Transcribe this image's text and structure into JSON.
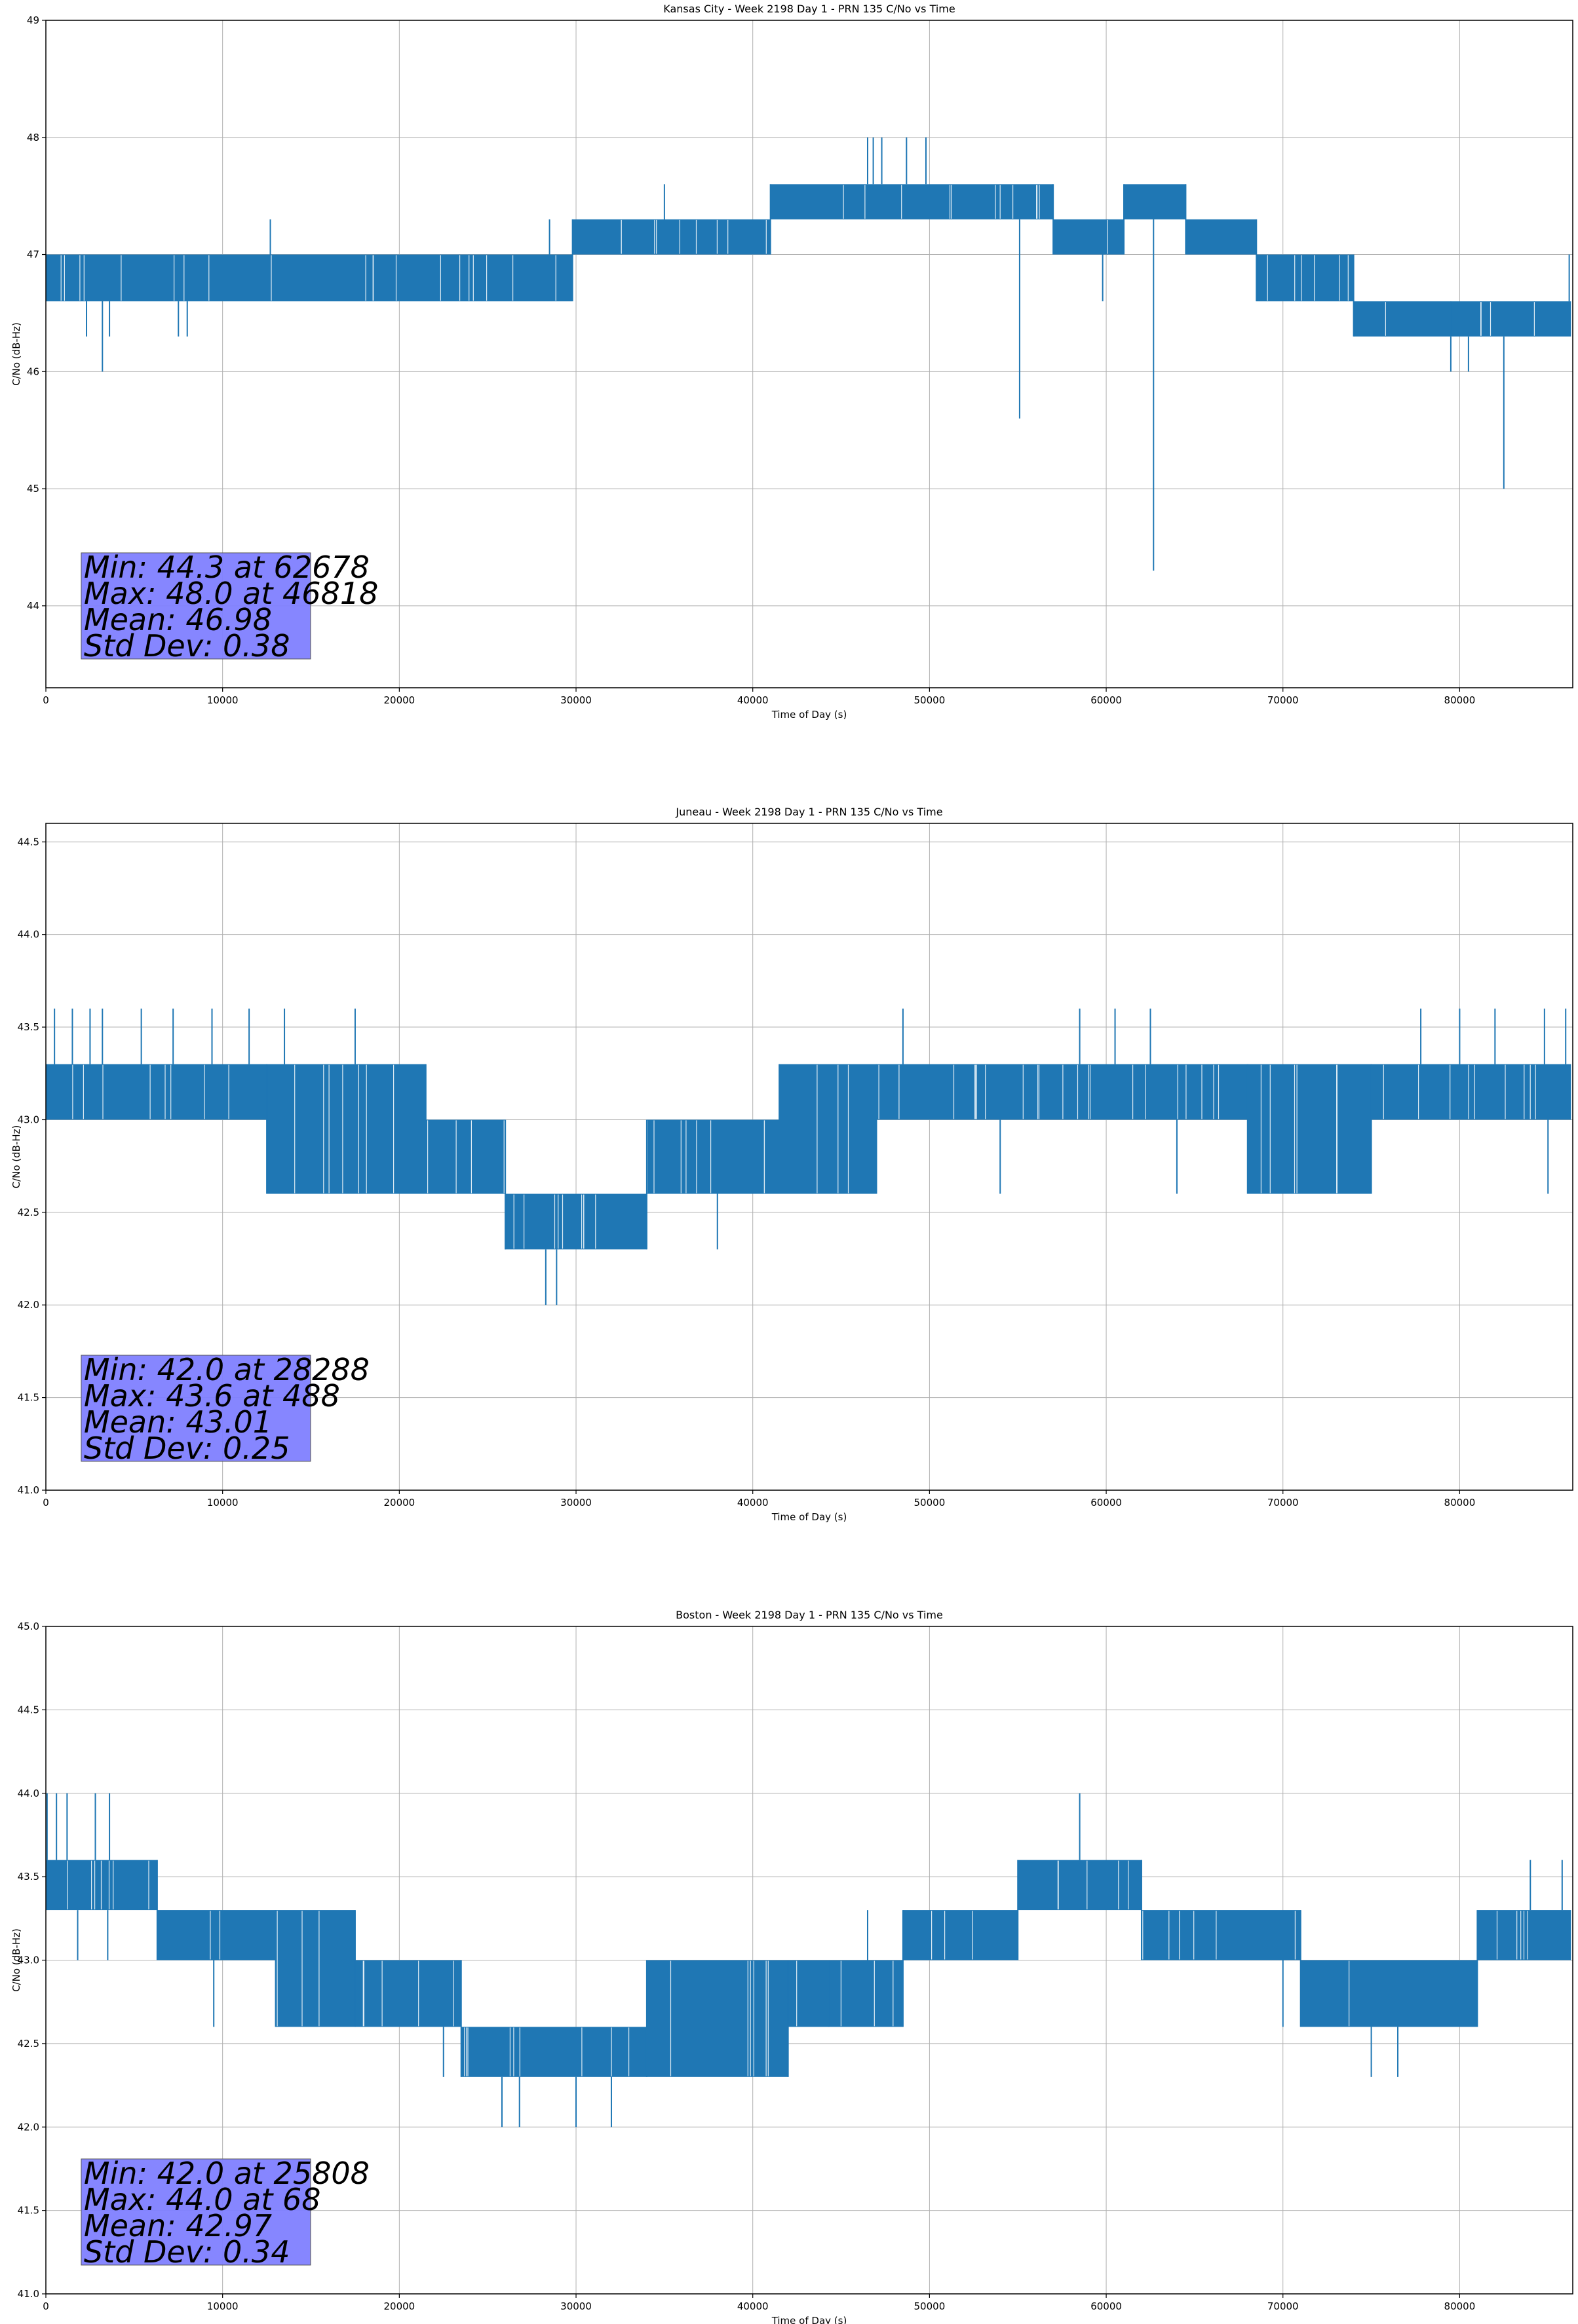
{
  "colors": {
    "series": "#1f77b4",
    "grid": "#b0b0b0",
    "stats_box": "#8080ff",
    "axes": "#000000"
  },
  "chart_data": [
    {
      "type": "line",
      "title": "Kansas City - Week 2198 Day 1 - PRN 135 C/No vs Time",
      "xlabel": "Time of Day (s)",
      "ylabel": "C/No (dB-Hz)",
      "xlim": [
        0,
        86400
      ],
      "ylim": [
        43.3,
        49.0
      ],
      "xticks": [
        0,
        10000,
        20000,
        30000,
        40000,
        50000,
        60000,
        70000,
        80000
      ],
      "yticks": [
        44,
        45,
        46,
        47,
        48,
        49
      ],
      "ytick_decimals": 0,
      "grid": true,
      "stats": [
        "Min: 44.3 at 62678",
        "Max: 48.0 at 46818",
        "Mean: 46.98",
        "Std Dev: 0.38"
      ],
      "series": [
        {
          "segments": [
            {
              "x0": 0,
              "x1": 29800,
              "lo": 46.6,
              "hi": 47.0
            },
            {
              "x0": 29800,
              "x1": 41000,
              "lo": 47.0,
              "hi": 47.3
            },
            {
              "x0": 41000,
              "x1": 57000,
              "lo": 47.3,
              "hi": 47.6
            },
            {
              "x0": 57000,
              "x1": 61000,
              "lo": 47.0,
              "hi": 47.3
            },
            {
              "x0": 61000,
              "x1": 64500,
              "lo": 47.3,
              "hi": 47.6
            },
            {
              "x0": 64500,
              "x1": 68500,
              "lo": 47.0,
              "hi": 47.3
            },
            {
              "x0": 68500,
              "x1": 74000,
              "lo": 46.6,
              "hi": 47.0
            },
            {
              "x0": 74000,
              "x1": 86300,
              "lo": 46.3,
              "hi": 46.6
            }
          ],
          "spikes": [
            {
              "x": 2300,
              "y": 46.3
            },
            {
              "x": 3200,
              "y": 46.0
            },
            {
              "x": 3600,
              "y": 46.3
            },
            {
              "x": 7500,
              "y": 46.3
            },
            {
              "x": 8000,
              "y": 46.3
            },
            {
              "x": 12700,
              "y": 47.3
            },
            {
              "x": 28500,
              "y": 47.3
            },
            {
              "x": 35000,
              "y": 47.6
            },
            {
              "x": 46500,
              "y": 48.0
            },
            {
              "x": 46818,
              "y": 48.0
            },
            {
              "x": 47300,
              "y": 48.0
            },
            {
              "x": 48700,
              "y": 48.0
            },
            {
              "x": 49800,
              "y": 48.0
            },
            {
              "x": 55100,
              "y": 45.6
            },
            {
              "x": 59800,
              "y": 46.6
            },
            {
              "x": 62678,
              "y": 44.3
            },
            {
              "x": 75400,
              "y": 46.3
            },
            {
              "x": 79500,
              "y": 46.6
            },
            {
              "x": 79500,
              "y": 46.0
            },
            {
              "x": 80500,
              "y": 46.0
            },
            {
              "x": 82500,
              "y": 45.0
            },
            {
              "x": 86200,
              "y": 47.0
            }
          ]
        }
      ]
    },
    {
      "type": "line",
      "title": "Juneau - Week 2198 Day 1 - PRN 135 C/No vs Time",
      "xlabel": "Time of Day (s)",
      "ylabel": "C/No (dB-Hz)",
      "xlim": [
        0,
        86400
      ],
      "ylim": [
        41.0,
        44.6
      ],
      "xticks": [
        0,
        10000,
        20000,
        30000,
        40000,
        50000,
        60000,
        70000,
        80000
      ],
      "yticks": [
        41.0,
        41.5,
        42.0,
        42.5,
        43.0,
        43.5,
        44.0,
        44.5
      ],
      "ytick_decimals": 1,
      "grid": true,
      "stats": [
        "Min: 42.0 at 28288",
        "Max: 43.6 at 488",
        "Mean: 43.01",
        "Std Dev: 0.25"
      ],
      "series": [
        {
          "segments": [
            {
              "x0": 0,
              "x1": 12500,
              "lo": 43.0,
              "hi": 43.3
            },
            {
              "x0": 12500,
              "x1": 21500,
              "lo": 42.6,
              "hi": 43.3
            },
            {
              "x0": 21500,
              "x1": 26000,
              "lo": 42.6,
              "hi": 43.0
            },
            {
              "x0": 26000,
              "x1": 34000,
              "lo": 42.3,
              "hi": 42.6
            },
            {
              "x0": 34000,
              "x1": 41500,
              "lo": 42.6,
              "hi": 43.0
            },
            {
              "x0": 41500,
              "x1": 47000,
              "lo": 42.6,
              "hi": 43.3
            },
            {
              "x0": 47000,
              "x1": 68000,
              "lo": 43.0,
              "hi": 43.3
            },
            {
              "x0": 68000,
              "x1": 75000,
              "lo": 42.6,
              "hi": 43.3
            },
            {
              "x0": 75000,
              "x1": 86300,
              "lo": 43.0,
              "hi": 43.3
            }
          ],
          "spikes": [
            {
              "x": 488,
              "y": 43.6
            },
            {
              "x": 1500,
              "y": 43.6
            },
            {
              "x": 2500,
              "y": 43.6
            },
            {
              "x": 3200,
              "y": 43.6
            },
            {
              "x": 5400,
              "y": 43.6
            },
            {
              "x": 7200,
              "y": 43.6
            },
            {
              "x": 9400,
              "y": 43.6
            },
            {
              "x": 11500,
              "y": 43.6
            },
            {
              "x": 13500,
              "y": 43.6
            },
            {
              "x": 17500,
              "y": 43.6
            },
            {
              "x": 26000,
              "y": 42.3
            },
            {
              "x": 28288,
              "y": 42.0
            },
            {
              "x": 28900,
              "y": 42.0
            },
            {
              "x": 38000,
              "y": 42.3
            },
            {
              "x": 48500,
              "y": 43.6
            },
            {
              "x": 58500,
              "y": 43.6
            },
            {
              "x": 60500,
              "y": 43.6
            },
            {
              "x": 62500,
              "y": 43.6
            },
            {
              "x": 77800,
              "y": 43.6
            },
            {
              "x": 80000,
              "y": 43.6
            },
            {
              "x": 82000,
              "y": 43.6
            },
            {
              "x": 84800,
              "y": 43.6
            },
            {
              "x": 86000,
              "y": 43.6
            },
            {
              "x": 54000,
              "y": 42.6
            },
            {
              "x": 64000,
              "y": 42.6
            },
            {
              "x": 85000,
              "y": 42.6
            }
          ]
        }
      ]
    },
    {
      "type": "line",
      "title": "Boston - Week 2198 Day 1 - PRN 135 C/No vs Time",
      "xlabel": "Time of Day (s)",
      "ylabel": "C/No (dB-Hz)",
      "xlim": [
        0,
        86400
      ],
      "ylim": [
        41.0,
        45.0
      ],
      "xticks": [
        0,
        10000,
        20000,
        30000,
        40000,
        50000,
        60000,
        70000,
        80000
      ],
      "yticks": [
        41.0,
        41.5,
        42.0,
        42.5,
        43.0,
        43.5,
        44.0,
        44.5,
        45.0
      ],
      "ytick_decimals": 1,
      "grid": true,
      "stats": [
        "Min: 42.0 at 25808",
        "Max: 44.0 at 68",
        "Mean: 42.97",
        "Std Dev: 0.34"
      ],
      "series": [
        {
          "segments": [
            {
              "x0": 0,
              "x1": 6300,
              "lo": 43.3,
              "hi": 43.6
            },
            {
              "x0": 6300,
              "x1": 13000,
              "lo": 43.0,
              "hi": 43.3
            },
            {
              "x0": 13000,
              "x1": 17500,
              "lo": 42.6,
              "hi": 43.3
            },
            {
              "x0": 17500,
              "x1": 23500,
              "lo": 42.6,
              "hi": 43.0
            },
            {
              "x0": 23500,
              "x1": 34000,
              "lo": 42.3,
              "hi": 42.6
            },
            {
              "x0": 34000,
              "x1": 42000,
              "lo": 42.3,
              "hi": 43.0
            },
            {
              "x0": 42000,
              "x1": 48500,
              "lo": 42.6,
              "hi": 43.0
            },
            {
              "x0": 48500,
              "x1": 55000,
              "lo": 43.0,
              "hi": 43.3
            },
            {
              "x0": 55000,
              "x1": 62000,
              "lo": 43.3,
              "hi": 43.6
            },
            {
              "x0": 62000,
              "x1": 71000,
              "lo": 43.0,
              "hi": 43.3
            },
            {
              "x0": 71000,
              "x1": 81000,
              "lo": 42.6,
              "hi": 43.0
            },
            {
              "x0": 81000,
              "x1": 86300,
              "lo": 43.0,
              "hi": 43.3
            }
          ],
          "spikes": [
            {
              "x": 68,
              "y": 44.0
            },
            {
              "x": 600,
              "y": 44.0
            },
            {
              "x": 1200,
              "y": 44.0
            },
            {
              "x": 2800,
              "y": 44.0
            },
            {
              "x": 3600,
              "y": 44.0
            },
            {
              "x": 1800,
              "y": 43.0
            },
            {
              "x": 3500,
              "y": 43.0
            },
            {
              "x": 9500,
              "y": 42.6
            },
            {
              "x": 22500,
              "y": 42.3
            },
            {
              "x": 25808,
              "y": 42.0
            },
            {
              "x": 26800,
              "y": 42.0
            },
            {
              "x": 30000,
              "y": 42.0
            },
            {
              "x": 32000,
              "y": 42.0
            },
            {
              "x": 44300,
              "y": 43.0
            },
            {
              "x": 46500,
              "y": 43.3
            },
            {
              "x": 58500,
              "y": 44.0
            },
            {
              "x": 70000,
              "y": 42.6
            },
            {
              "x": 75000,
              "y": 42.3
            },
            {
              "x": 76500,
              "y": 42.3
            },
            {
              "x": 84000,
              "y": 43.6
            },
            {
              "x": 85800,
              "y": 43.6
            }
          ]
        }
      ]
    }
  ]
}
